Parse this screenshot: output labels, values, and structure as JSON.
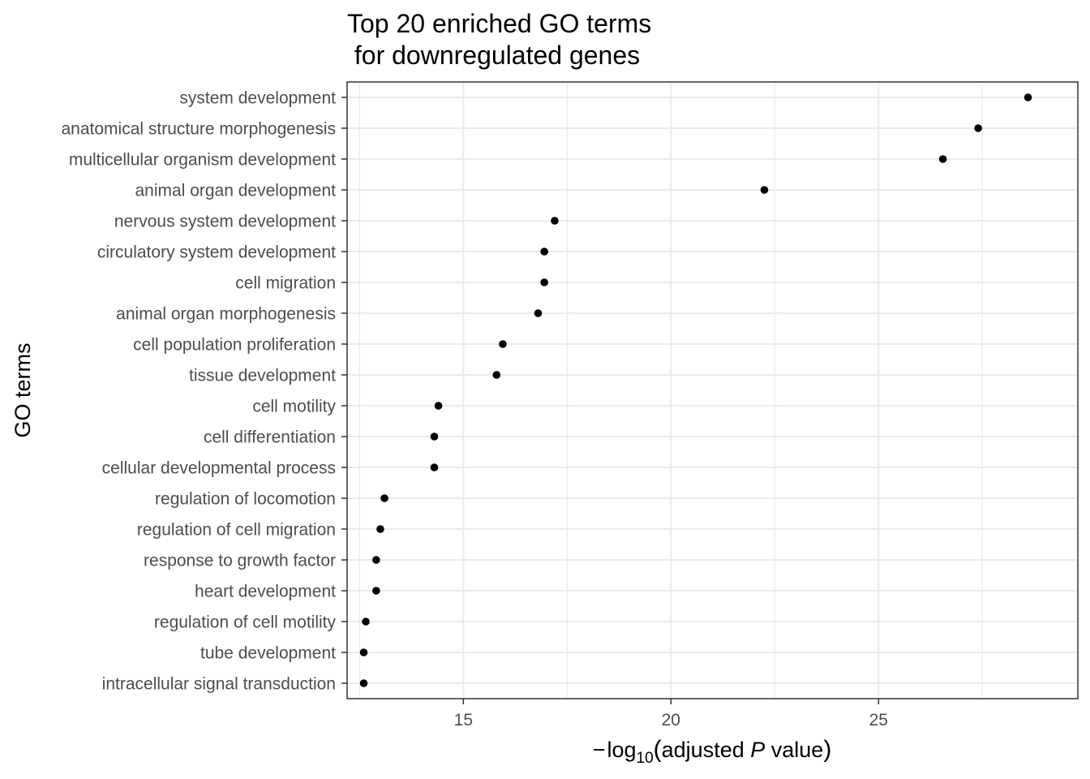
{
  "chart_data": {
    "type": "scatter",
    "title_lines": [
      "Top 20 enriched GO terms",
      " for downregulated genes"
    ],
    "ylabel": "GO terms",
    "xlabel": {
      "minus": "−",
      "log": "log",
      "sub": "10",
      "open": "(",
      "pre": "adjusted ",
      "italic": "P",
      "post": " value",
      "close": ")"
    },
    "x_ticks": [
      15,
      20,
      25
    ],
    "x_tick_labels": [
      "15",
      "20",
      "25"
    ],
    "xlim": [
      12.2,
      29.8
    ],
    "grid": true,
    "categories": [
      "system development",
      "anatomical structure morphogenesis",
      "multicellular organism development",
      "animal organ development",
      "nervous system development",
      "circulatory system development",
      "cell migration",
      "animal organ morphogenesis",
      "cell population proliferation",
      "tissue development",
      "cell motility",
      "cell differentiation",
      "cellular developmental process",
      "regulation of locomotion",
      "regulation of cell migration",
      "response to growth factor",
      "heart development",
      "regulation of cell motility",
      "tube development",
      "intracellular signal transduction"
    ],
    "values": [
      28.6,
      27.4,
      26.55,
      22.25,
      17.2,
      16.95,
      16.95,
      16.8,
      15.95,
      15.8,
      14.4,
      14.3,
      14.3,
      13.1,
      13.0,
      12.9,
      12.9,
      12.65,
      12.6,
      12.6
    ],
    "colors": {
      "point": "#000000",
      "grid": "#ebebeb",
      "panel_border": "#333333",
      "tick": "#333333"
    }
  }
}
